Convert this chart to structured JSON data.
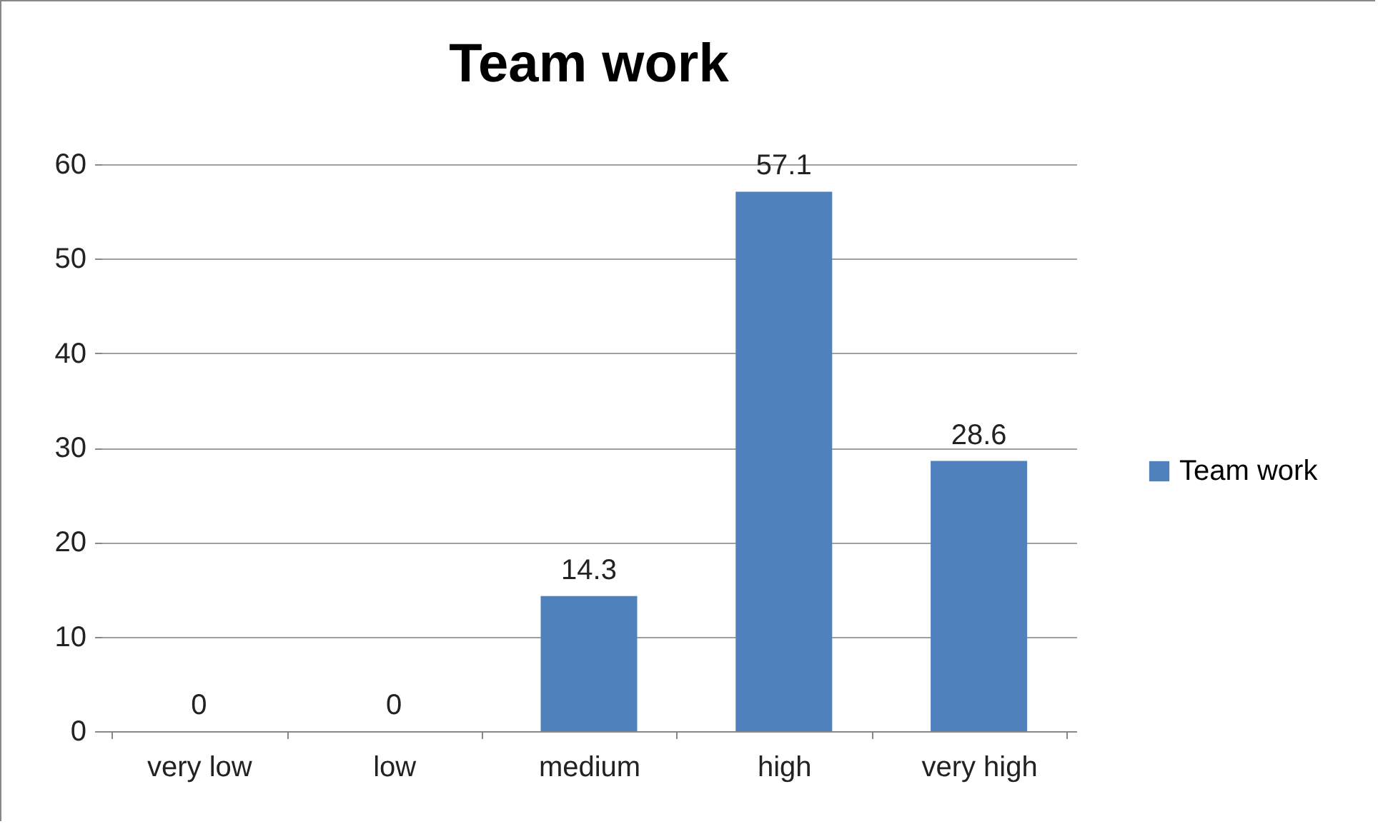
{
  "chart_data": {
    "type": "bar",
    "title": "Team work",
    "categories": [
      "very low",
      "low",
      "medium",
      "high",
      "very high"
    ],
    "series": [
      {
        "name": "Team work",
        "color": "#4f81bd",
        "values": [
          0,
          0,
          14.3,
          57.1,
          28.6
        ]
      }
    ],
    "ylim": [
      0,
      60
    ],
    "yticks": [
      0,
      10,
      20,
      30,
      40,
      50,
      60
    ],
    "grid": "y",
    "legend": "right",
    "data_labels": true
  }
}
